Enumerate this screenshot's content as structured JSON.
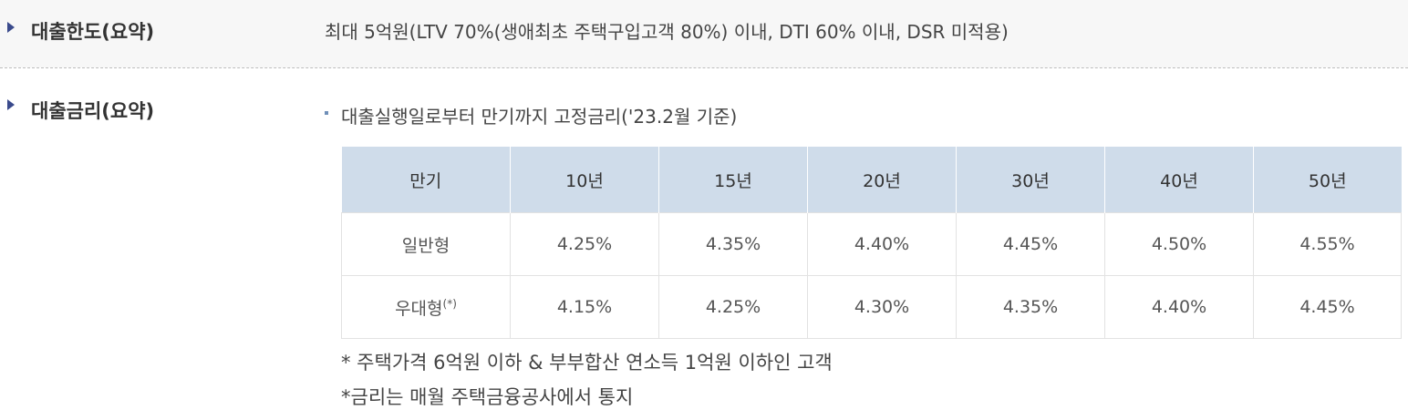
{
  "loan_limit": {
    "label": "대출한도(요약)",
    "value": "최대 5억원(LTV 70%(생애최초 주택구입고객 80%) 이내, DTI 60% 이내, DSR 미적용)"
  },
  "loan_rate": {
    "label": "대출금리(요약)",
    "subtitle": "대출실행일로부터 만기까지 고정금리('23.2월 기준)",
    "table": {
      "headers": [
        "만기",
        "10년",
        "15년",
        "20년",
        "30년",
        "40년",
        "50년"
      ],
      "rows": [
        {
          "name": "일반형",
          "sup": "",
          "values": [
            "4.25%",
            "4.35%",
            "4.40%",
            "4.45%",
            "4.50%",
            "4.55%"
          ]
        },
        {
          "name": "우대형",
          "sup": "(*)",
          "values": [
            "4.15%",
            "4.25%",
            "4.30%",
            "4.35%",
            "4.40%",
            "4.45%"
          ]
        }
      ]
    },
    "notes": [
      "* 주택가격 6억원 이하 & 부부합산 연소득 1억원 이하인 고객",
      "*금리는 매월 주택금융공사에서 통지"
    ]
  },
  "colors": {
    "bullet": "#3a4a8c",
    "table_header_bg": "#cfdcea",
    "top_section_bg": "#f7f7f7"
  }
}
